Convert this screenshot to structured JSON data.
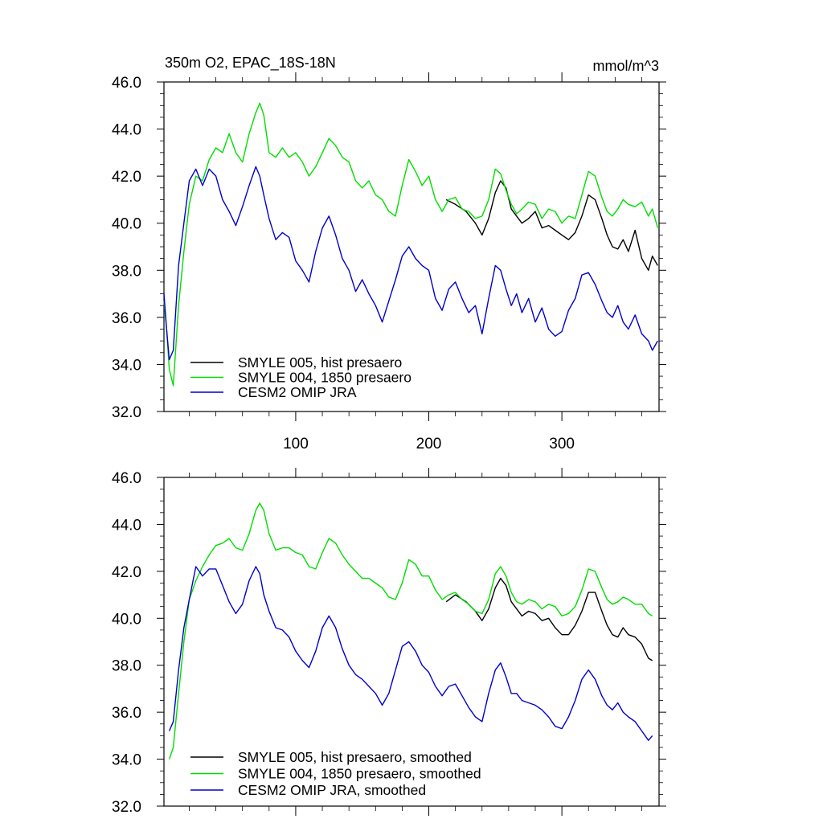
{
  "figure": {
    "title_left": "350m O2, EPAC_18S-18N",
    "title_right": "mmol/m^3"
  },
  "chart_data": [
    {
      "type": "line",
      "panel": "top",
      "xlim": [
        1,
        373
      ],
      "ylim": [
        32,
        46
      ],
      "x_ticks": [
        100,
        200,
        300
      ],
      "x_tick_labels": [
        "100",
        "200",
        "300"
      ],
      "y_ticks": [
        32,
        34,
        36,
        38,
        40,
        42,
        44,
        46
      ],
      "y_tick_labels": [
        "32.0",
        "34.0",
        "36.0",
        "38.0",
        "40.0",
        "42.0",
        "44.0",
        "46.0"
      ],
      "legend_position": "bottom-left",
      "series": [
        {
          "name": "SMYLE 005, hist presaero",
          "color": "#000000",
          "x": [
            213,
            220,
            228,
            235,
            240,
            245,
            250,
            254,
            258,
            262,
            266,
            270,
            275,
            280,
            285,
            290,
            295,
            300,
            305,
            310,
            315,
            320,
            325,
            330,
            334,
            338,
            342,
            346,
            350,
            355,
            360,
            365,
            368,
            372
          ],
          "values": [
            41.0,
            40.8,
            40.5,
            40.0,
            39.5,
            40.2,
            41.3,
            41.8,
            41.5,
            40.6,
            40.3,
            40.0,
            40.2,
            40.5,
            39.8,
            39.9,
            39.7,
            39.5,
            39.3,
            39.6,
            40.3,
            41.2,
            41.0,
            40.2,
            39.5,
            39.0,
            38.9,
            39.3,
            38.8,
            39.7,
            38.5,
            38.0,
            38.6,
            38.2
          ]
        },
        {
          "name": "SMYLE 004, 1850 presaero",
          "color": "#00dd00",
          "x": [
            1,
            3,
            5,
            8,
            12,
            16,
            20,
            25,
            30,
            35,
            40,
            45,
            50,
            55,
            60,
            65,
            70,
            73,
            76,
            80,
            85,
            90,
            95,
            100,
            105,
            110,
            115,
            120,
            125,
            130,
            135,
            140,
            145,
            150,
            155,
            160,
            165,
            170,
            175,
            180,
            185,
            190,
            195,
            200,
            205,
            210,
            215,
            220,
            225,
            230,
            235,
            240,
            245,
            250,
            254,
            258,
            262,
            266,
            270,
            275,
            280,
            285,
            290,
            295,
            300,
            305,
            310,
            315,
            320,
            325,
            330,
            334,
            338,
            342,
            346,
            350,
            355,
            360,
            365,
            368,
            372
          ],
          "values": [
            36.7,
            35.5,
            33.8,
            33.1,
            36.5,
            38.8,
            40.8,
            42.0,
            41.8,
            42.7,
            43.2,
            43.0,
            43.8,
            43.0,
            42.6,
            43.8,
            44.7,
            45.1,
            44.6,
            43.0,
            42.8,
            43.2,
            42.8,
            43.0,
            42.6,
            42.0,
            42.4,
            43.0,
            43.6,
            43.3,
            42.8,
            42.6,
            41.8,
            41.5,
            41.8,
            41.2,
            41.0,
            40.5,
            40.3,
            41.6,
            42.7,
            42.2,
            41.6,
            42.0,
            41.0,
            40.5,
            41.0,
            41.1,
            40.6,
            40.5,
            40.2,
            40.3,
            41.0,
            42.3,
            42.1,
            41.4,
            40.8,
            40.4,
            40.6,
            40.9,
            40.8,
            40.2,
            40.6,
            40.5,
            40.0,
            40.3,
            40.2,
            41.2,
            42.2,
            42.0,
            41.1,
            40.5,
            40.3,
            40.6,
            41.0,
            40.8,
            40.7,
            40.9,
            40.3,
            40.6,
            39.8
          ]
        },
        {
          "name": "CESM2 OMIP JRA",
          "color": "#0000cc",
          "x": [
            1,
            3,
            5,
            8,
            12,
            16,
            20,
            25,
            30,
            35,
            40,
            45,
            50,
            55,
            60,
            65,
            70,
            73,
            76,
            80,
            85,
            90,
            95,
            100,
            105,
            110,
            115,
            120,
            125,
            130,
            135,
            140,
            145,
            150,
            155,
            160,
            165,
            170,
            175,
            180,
            185,
            190,
            195,
            200,
            205,
            210,
            215,
            220,
            225,
            230,
            235,
            240,
            245,
            250,
            254,
            258,
            262,
            266,
            270,
            275,
            280,
            285,
            290,
            295,
            300,
            305,
            310,
            315,
            320,
            325,
            330,
            334,
            338,
            342,
            346,
            350,
            355,
            360,
            365,
            368,
            372
          ],
          "values": [
            37.0,
            35.5,
            34.2,
            34.6,
            38.2,
            40.0,
            41.8,
            42.3,
            41.6,
            42.3,
            42.0,
            41.0,
            40.5,
            39.9,
            40.7,
            41.6,
            42.4,
            42.0,
            41.2,
            40.2,
            39.3,
            39.6,
            39.4,
            38.4,
            38.0,
            37.5,
            38.8,
            39.8,
            40.3,
            39.5,
            38.5,
            38.0,
            37.1,
            37.6,
            37.0,
            36.5,
            35.8,
            36.7,
            37.6,
            38.6,
            39.0,
            38.5,
            38.2,
            38.0,
            36.8,
            36.3,
            37.2,
            37.5,
            36.8,
            36.2,
            36.5,
            35.3,
            36.8,
            38.2,
            38.0,
            37.2,
            36.5,
            37.0,
            36.2,
            36.8,
            35.8,
            36.4,
            35.5,
            35.2,
            35.4,
            36.3,
            36.8,
            37.8,
            37.9,
            37.4,
            36.7,
            36.2,
            36.0,
            36.5,
            35.8,
            35.5,
            36.1,
            35.3,
            35.0,
            34.6,
            35.0
          ]
        }
      ],
      "legend_entries": [
        "SMYLE 005, hist presaero",
        "SMYLE 004, 1850 presaero",
        "CESM2 OMIP JRA"
      ]
    },
    {
      "type": "line",
      "panel": "bottom",
      "xlim": [
        1,
        373
      ],
      "ylim": [
        32,
        46
      ],
      "x_ticks": [
        100,
        200,
        300
      ],
      "y_ticks": [
        32,
        34,
        36,
        38,
        40,
        42,
        44,
        46
      ],
      "y_tick_labels": [
        "32.0",
        "34.0",
        "36.0",
        "38.0",
        "40.0",
        "42.0",
        "44.0",
        "46.0"
      ],
      "legend_position": "bottom-left",
      "series": [
        {
          "name": "SMYLE 005, hist presaero, smoothed",
          "color": "#000000",
          "x": [
            213,
            220,
            228,
            235,
            240,
            245,
            250,
            254,
            258,
            262,
            266,
            270,
            275,
            280,
            285,
            290,
            295,
            300,
            305,
            310,
            315,
            320,
            325,
            330,
            334,
            338,
            342,
            346,
            350,
            355,
            360,
            365,
            368
          ],
          "values": [
            40.7,
            41.0,
            40.7,
            40.3,
            39.9,
            40.4,
            41.3,
            41.7,
            41.4,
            40.7,
            40.4,
            40.1,
            40.3,
            40.2,
            39.9,
            40.0,
            39.6,
            39.3,
            39.3,
            39.7,
            40.3,
            41.1,
            41.1,
            40.3,
            39.7,
            39.3,
            39.2,
            39.6,
            39.3,
            39.2,
            38.9,
            38.3,
            38.2
          ]
        },
        {
          "name": "SMYLE 004, 1850 presaero, smoothed",
          "color": "#00dd00",
          "x": [
            5,
            8,
            12,
            16,
            20,
            25,
            30,
            35,
            40,
            45,
            50,
            55,
            60,
            65,
            70,
            73,
            76,
            80,
            85,
            90,
            95,
            100,
            105,
            110,
            115,
            120,
            125,
            130,
            135,
            140,
            145,
            150,
            155,
            160,
            165,
            170,
            175,
            180,
            185,
            190,
            195,
            200,
            205,
            210,
            215,
            220,
            225,
            230,
            235,
            240,
            245,
            250,
            254,
            258,
            262,
            266,
            270,
            275,
            280,
            285,
            290,
            295,
            300,
            305,
            310,
            315,
            320,
            325,
            330,
            334,
            338,
            342,
            346,
            350,
            355,
            360,
            365,
            368
          ],
          "values": [
            34.0,
            34.5,
            36.8,
            39.0,
            40.8,
            41.6,
            42.2,
            42.7,
            43.1,
            43.2,
            43.4,
            43.0,
            42.9,
            43.6,
            44.6,
            44.9,
            44.6,
            43.6,
            42.9,
            43.0,
            43.0,
            42.8,
            42.7,
            42.2,
            42.1,
            42.8,
            43.4,
            43.2,
            42.7,
            42.3,
            42.0,
            41.7,
            41.7,
            41.5,
            41.3,
            40.9,
            40.8,
            41.5,
            42.5,
            42.3,
            41.8,
            41.8,
            41.2,
            40.8,
            41.0,
            41.1,
            40.8,
            40.6,
            40.3,
            40.2,
            40.8,
            41.9,
            42.2,
            41.8,
            41.1,
            40.7,
            40.6,
            40.8,
            40.7,
            40.4,
            40.6,
            40.5,
            40.1,
            40.2,
            40.5,
            41.2,
            42.1,
            42.0,
            41.3,
            40.8,
            40.6,
            40.7,
            40.9,
            40.8,
            40.6,
            40.6,
            40.2,
            40.1
          ]
        },
        {
          "name": "CESM2 OMIP JRA, smoothed",
          "color": "#0000cc",
          "x": [
            5,
            8,
            12,
            16,
            20,
            25,
            30,
            35,
            40,
            45,
            50,
            55,
            60,
            65,
            70,
            73,
            76,
            80,
            85,
            90,
            95,
            100,
            105,
            110,
            115,
            120,
            125,
            130,
            135,
            140,
            145,
            150,
            155,
            160,
            165,
            170,
            175,
            180,
            185,
            190,
            195,
            200,
            205,
            210,
            215,
            220,
            225,
            230,
            235,
            240,
            245,
            250,
            254,
            258,
            262,
            266,
            270,
            275,
            280,
            285,
            290,
            295,
            300,
            305,
            310,
            315,
            320,
            325,
            330,
            334,
            338,
            342,
            346,
            350,
            355,
            360,
            365,
            368
          ],
          "values": [
            35.2,
            35.6,
            37.8,
            39.6,
            40.8,
            42.2,
            41.8,
            42.1,
            42.1,
            41.4,
            40.7,
            40.2,
            40.6,
            41.6,
            42.2,
            41.9,
            41.0,
            40.3,
            39.6,
            39.5,
            39.2,
            38.6,
            38.2,
            37.9,
            38.6,
            39.6,
            40.1,
            39.6,
            38.7,
            38.0,
            37.6,
            37.4,
            37.1,
            36.8,
            36.3,
            36.8,
            37.8,
            38.8,
            39.0,
            38.6,
            38.0,
            37.7,
            37.1,
            36.7,
            37.1,
            37.2,
            36.7,
            36.2,
            35.8,
            35.6,
            36.8,
            37.8,
            38.1,
            37.5,
            36.8,
            36.8,
            36.5,
            36.4,
            36.3,
            36.1,
            35.8,
            35.4,
            35.3,
            35.8,
            36.5,
            37.4,
            37.8,
            37.4,
            36.7,
            36.3,
            36.1,
            36.4,
            36.0,
            35.8,
            35.6,
            35.2,
            34.8,
            35.0
          ]
        }
      ],
      "legend_entries": [
        "SMYLE 005, hist presaero, smoothed",
        "SMYLE 004, 1850 presaero, smoothed",
        "CESM2 OMIP JRA, smoothed"
      ]
    }
  ]
}
